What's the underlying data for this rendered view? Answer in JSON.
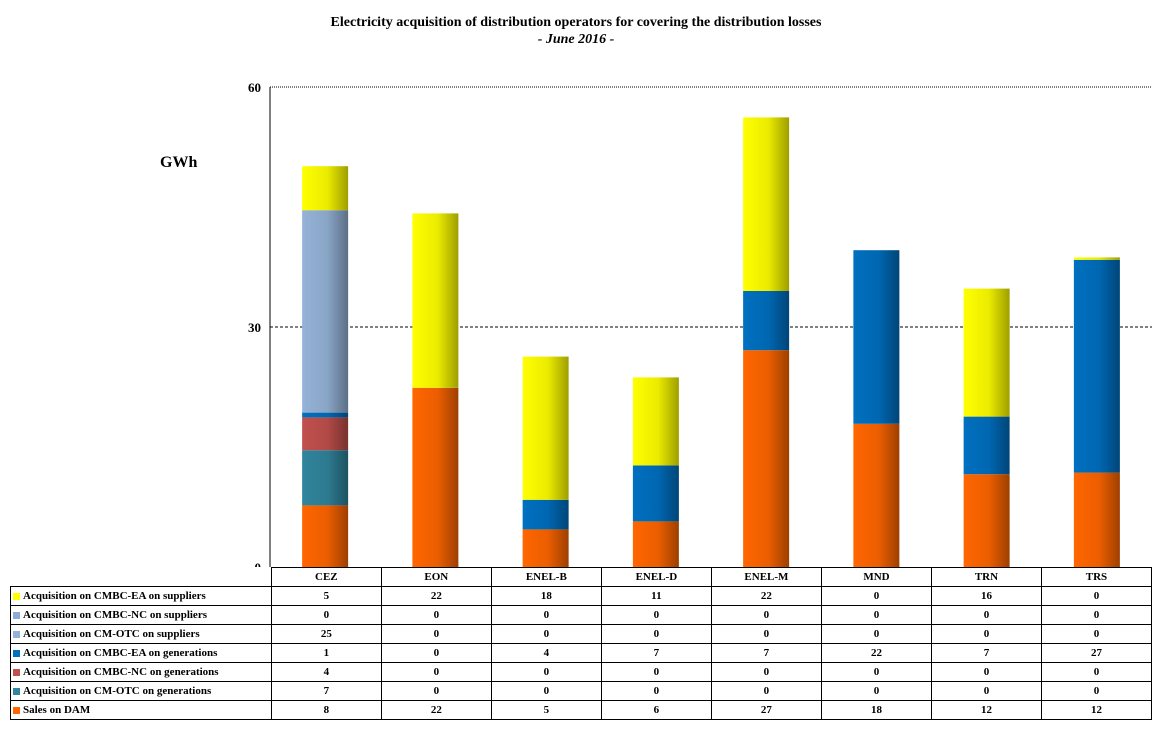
{
  "chart_data": {
    "type": "bar",
    "stacked": true,
    "title": "Electricity acquisition of distribution operators for covering the distribution losses",
    "subtitle": "- June 2016 -",
    "ylabel": "GWh",
    "ylim": [
      0,
      60
    ],
    "yticks": [
      "0",
      "30",
      "60"
    ],
    "grid": true,
    "legend": "data-table-below",
    "categories": [
      "CEZ",
      "EON",
      "ENEL-B",
      "ENEL-D",
      "ENEL-M",
      "MND",
      "TRN",
      "TRS"
    ],
    "series_values": [
      {
        "name": "Sales on DAM",
        "color": "#ff6600",
        "values": [
          7.7,
          22.4,
          4.7,
          5.7,
          27.1,
          17.9,
          11.6,
          11.8
        ]
      },
      {
        "name": "Acquisition on CM-OTC on generations",
        "color": "#31859c",
        "values": [
          6.9,
          0,
          0,
          0,
          0,
          0,
          0,
          0
        ]
      },
      {
        "name": "Acquisition on CMBC-NC on generations",
        "color": "#c0504d",
        "values": [
          4.1,
          0,
          0,
          0,
          0,
          0,
          0,
          0
        ]
      },
      {
        "name": "Acquisition on CMBC-EA on generations",
        "color": "#0070c0",
        "values": [
          0.6,
          0,
          3.7,
          7.0,
          7.4,
          21.7,
          7.2,
          26.6
        ]
      },
      {
        "name": "Acquisition on CM-OTC on suppliers",
        "color": "#95b3d7",
        "values": [
          25.3,
          0,
          0,
          0,
          0,
          0,
          0,
          0
        ]
      },
      {
        "name": "Acquisition on CMBC-NC on suppliers",
        "color": "#8eaadb",
        "values": [
          0,
          0,
          0,
          0,
          0,
          0,
          0,
          0
        ]
      },
      {
        "name": "Acquisition on CMBC-EA on suppliers",
        "color": "#ffff00",
        "values": [
          5.5,
          21.8,
          17.9,
          11.0,
          21.7,
          0,
          16.0,
          0.3
        ]
      }
    ],
    "table_rows": [
      {
        "label": "Acquisition on CMBC-EA on suppliers",
        "color": "#ffff00",
        "cells": [
          "5",
          "22",
          "18",
          "11",
          "22",
          "0",
          "16",
          "0"
        ]
      },
      {
        "label": "Acquisition on CMBC-NC on suppliers",
        "color": "#8eaadb",
        "cells": [
          "0",
          "0",
          "0",
          "0",
          "0",
          "0",
          "0",
          "0"
        ]
      },
      {
        "label": "Acquisition on CM-OTC on suppliers",
        "color": "#95b3d7",
        "cells": [
          "25",
          "0",
          "0",
          "0",
          "0",
          "0",
          "0",
          "0"
        ]
      },
      {
        "label": "Acquisition on CMBC-EA on generations",
        "color": "#0070c0",
        "cells": [
          "1",
          "0",
          "4",
          "7",
          "7",
          "22",
          "7",
          "27"
        ]
      },
      {
        "label": "Acquisition on CMBC-NC on generations",
        "color": "#c0504d",
        "cells": [
          "4",
          "0",
          "0",
          "0",
          "0",
          "0",
          "0",
          "0"
        ]
      },
      {
        "label": "Acquisition on CM-OTC on generations",
        "color": "#31859c",
        "cells": [
          "7",
          "0",
          "0",
          "0",
          "0",
          "0",
          "0",
          "0"
        ]
      },
      {
        "label": "Sales on DAM",
        "color": "#ff6600",
        "cells": [
          "8",
          "22",
          "5",
          "6",
          "27",
          "18",
          "12",
          "12"
        ]
      }
    ]
  }
}
